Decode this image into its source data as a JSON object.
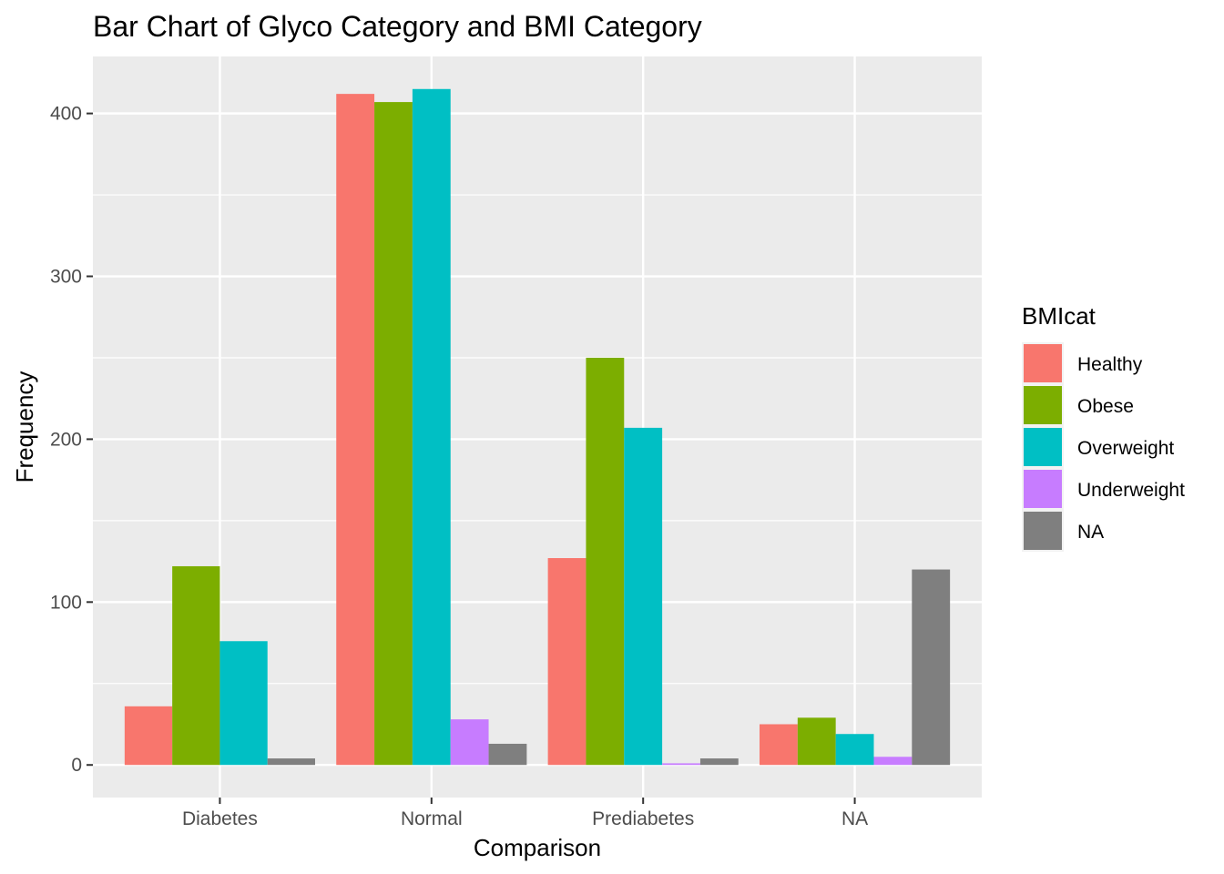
{
  "chart_data": {
    "type": "bar",
    "title": "Bar Chart of Glyco Category and BMI Category",
    "xlabel": "Comparison",
    "ylabel": "Frequency",
    "categories": [
      "Diabetes",
      "Normal",
      "Prediabetes",
      "NA"
    ],
    "ylim": [
      -20,
      435
    ],
    "yticks": [
      0,
      100,
      200,
      300,
      400
    ],
    "grid": true,
    "legend_title": "BMIcat",
    "legend_position": "right",
    "series": [
      {
        "name": "Healthy",
        "color": "#F8766D",
        "values": [
          36,
          412,
          127,
          25
        ]
      },
      {
        "name": "Obese",
        "color": "#7CAE00",
        "values": [
          122,
          407,
          250,
          29
        ]
      },
      {
        "name": "Overweight",
        "color": "#00BFC4",
        "values": [
          76,
          415,
          207,
          19
        ]
      },
      {
        "name": "Underweight",
        "color": "#C77CFF",
        "values": [
          null,
          28,
          1,
          5
        ]
      },
      {
        "name": "NA",
        "color": "#7F7F7F",
        "values": [
          4,
          13,
          4,
          120
        ]
      }
    ]
  }
}
